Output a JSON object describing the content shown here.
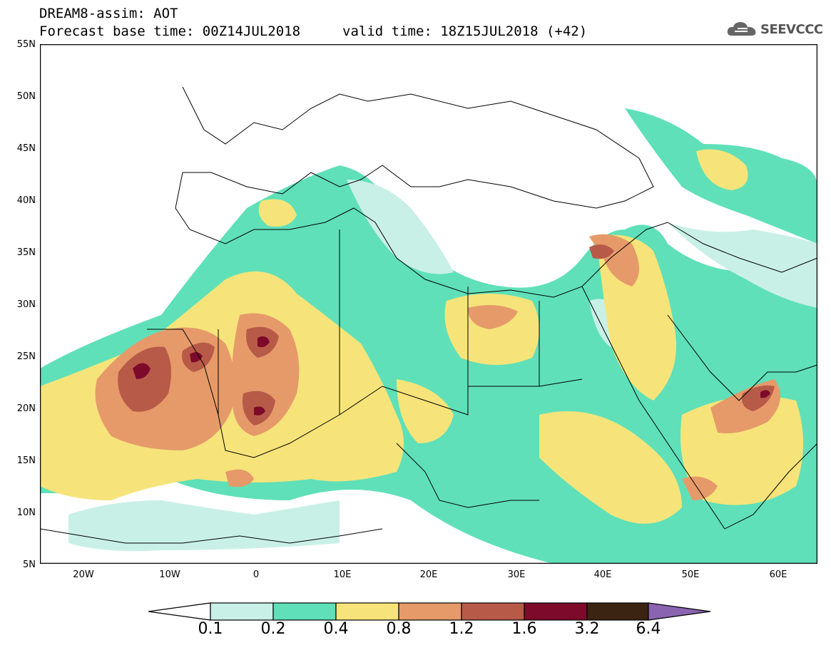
{
  "header": {
    "title": "DREAM8-assim: AOT",
    "base_time": "Forecast base time: 00Z14JUL2018",
    "valid_time": "valid time: 18Z15JUL2018 (+42)",
    "logo_text": "SEEVCCC",
    "logo_icon": "cloud-icon"
  },
  "map": {
    "lat_labels": [
      "55N",
      "50N",
      "45N",
      "40N",
      "35N",
      "30N",
      "25N",
      "20N",
      "15N",
      "10N",
      "5N"
    ],
    "lon_labels": [
      "20W",
      "10W",
      "0",
      "10E",
      "20E",
      "30E",
      "40E",
      "50E",
      "60E"
    ]
  },
  "colorbar": {
    "labels": [
      "0.1",
      "0.2",
      "0.4",
      "0.8",
      "1.2",
      "1.6",
      "3.2",
      "6.4"
    ],
    "colors": [
      "#ffffff",
      "#c9f0e6",
      "#5fe0b8",
      "#f6e47a",
      "#e69a6a",
      "#b85a48",
      "#7d0a2a",
      "#3b2412",
      "#8a64b0"
    ]
  }
}
